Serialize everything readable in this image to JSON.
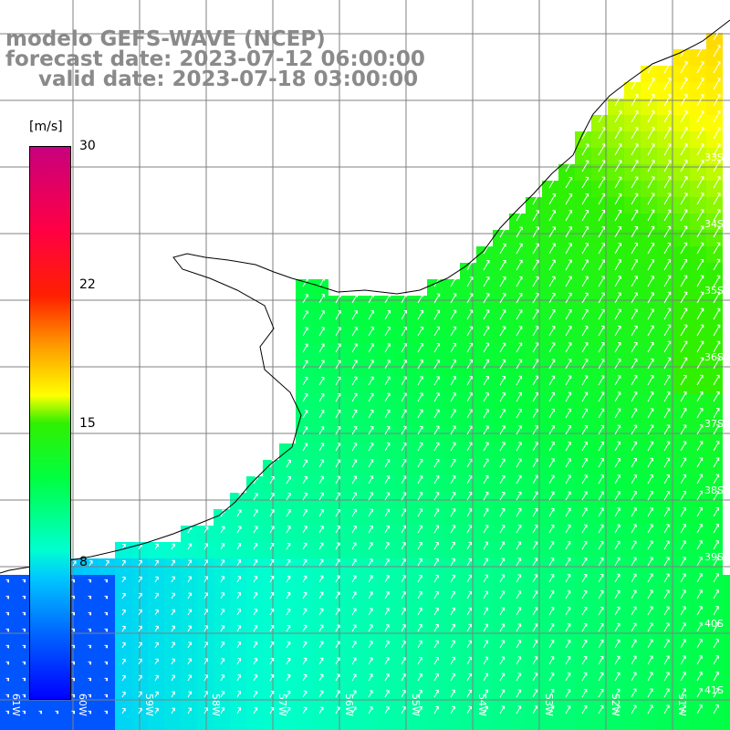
{
  "title": {
    "line1": "modelo GEFS-WAVE (NCEP)",
    "line2": "forecast date: 2023-07-12 06:00:00",
    "line3": "valid date: 2023-07-18 03:00:00"
  },
  "colorbar": {
    "unit": "[m/s]",
    "min": 0,
    "max": 30,
    "ticks": [
      {
        "value": 30,
        "label": "30"
      },
      {
        "value": 22,
        "label": "22"
      },
      {
        "value": 15,
        "label": "15"
      },
      {
        "value": 8,
        "label": "8"
      }
    ],
    "colors": [
      "#0000ff",
      "#0066ff",
      "#00c8ff",
      "#00ffd0",
      "#00ff40",
      "#30f000",
      "#ffff00",
      "#ff9a00",
      "#ff2000",
      "#ff0044",
      "#c8007e"
    ]
  },
  "map": {
    "region": "Rio de la Plata / Uruguay coast",
    "latitude_labels": [
      "33S",
      "34S",
      "35S",
      "36S",
      "37S",
      "38S",
      "39S",
      "40S",
      "41S"
    ],
    "longitude_labels": [
      "61W",
      "60W",
      "59W",
      "58W",
      "57W",
      "56W",
      "55W",
      "54W",
      "53W",
      "52W",
      "51W"
    ],
    "land_color": "#ffffff",
    "coastline_color": "#000000",
    "grid_color": "#808080",
    "arrow_color": "#ffffff"
  }
}
